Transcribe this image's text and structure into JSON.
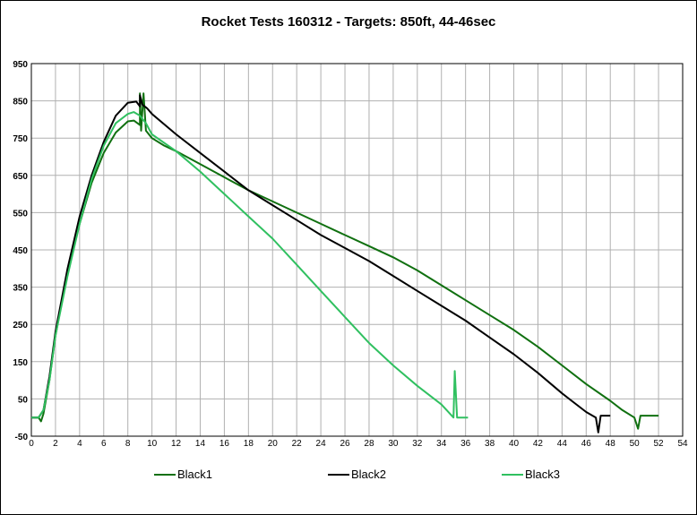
{
  "chart_data": {
    "type": "line",
    "title": "Rocket Tests 160312 - Targets: 850ft, 44-46sec",
    "xlabel": "",
    "ylabel": "",
    "xlim": [
      0,
      54
    ],
    "ylim": [
      -50,
      950
    ],
    "x_ticks": [
      0,
      2,
      4,
      6,
      8,
      10,
      12,
      14,
      16,
      18,
      20,
      22,
      24,
      26,
      28,
      30,
      32,
      34,
      36,
      38,
      40,
      42,
      44,
      46,
      48,
      50,
      52,
      54
    ],
    "y_ticks": [
      -50,
      50,
      150,
      250,
      350,
      450,
      550,
      650,
      750,
      850,
      950
    ],
    "grid": true,
    "legend_position": "bottom",
    "series": [
      {
        "name": "Black1",
        "color": "#107010",
        "points": [
          [
            0,
            0
          ],
          [
            0.6,
            0
          ],
          [
            0.8,
            -10
          ],
          [
            1,
            10
          ],
          [
            1.5,
            100
          ],
          [
            2,
            220
          ],
          [
            3,
            390
          ],
          [
            4,
            520
          ],
          [
            5,
            630
          ],
          [
            6,
            710
          ],
          [
            7,
            765
          ],
          [
            8,
            795
          ],
          [
            8.5,
            797
          ],
          [
            9,
            785
          ],
          [
            9,
            870
          ],
          [
            9.1,
            770
          ],
          [
            9.3,
            870
          ],
          [
            9.5,
            770
          ],
          [
            10,
            750
          ],
          [
            11,
            730
          ],
          [
            12,
            715
          ],
          [
            14,
            680
          ],
          [
            16,
            645
          ],
          [
            18,
            610
          ],
          [
            20,
            580
          ],
          [
            22,
            550
          ],
          [
            24,
            520
          ],
          [
            26,
            490
          ],
          [
            28,
            460
          ],
          [
            30,
            430
          ],
          [
            32,
            395
          ],
          [
            34,
            355
          ],
          [
            36,
            315
          ],
          [
            38,
            275
          ],
          [
            40,
            235
          ],
          [
            42,
            190
          ],
          [
            44,
            140
          ],
          [
            46,
            90
          ],
          [
            48,
            45
          ],
          [
            49,
            20
          ],
          [
            50,
            0
          ],
          [
            50.3,
            -30
          ],
          [
            50.5,
            5
          ],
          [
            52,
            5
          ]
        ]
      },
      {
        "name": "Black2",
        "color": "#000000",
        "points": [
          [
            0,
            0
          ],
          [
            0.6,
            0
          ],
          [
            1,
            20
          ],
          [
            1.5,
            110
          ],
          [
            2,
            230
          ],
          [
            3,
            400
          ],
          [
            4,
            540
          ],
          [
            5,
            650
          ],
          [
            6,
            740
          ],
          [
            7,
            810
          ],
          [
            8,
            845
          ],
          [
            8.7,
            848
          ],
          [
            9,
            835
          ],
          [
            9,
            865
          ],
          [
            9.2,
            840
          ],
          [
            9.6,
            830
          ],
          [
            10,
            815
          ],
          [
            12,
            760
          ],
          [
            14,
            710
          ],
          [
            16,
            660
          ],
          [
            18,
            610
          ],
          [
            20,
            570
          ],
          [
            22,
            530
          ],
          [
            24,
            490
          ],
          [
            26,
            455
          ],
          [
            28,
            420
          ],
          [
            30,
            380
          ],
          [
            32,
            340
          ],
          [
            34,
            300
          ],
          [
            36,
            260
          ],
          [
            38,
            215
          ],
          [
            40,
            170
          ],
          [
            42,
            120
          ],
          [
            44,
            65
          ],
          [
            46,
            15
          ],
          [
            46.8,
            0
          ],
          [
            47,
            -40
          ],
          [
            47.2,
            5
          ],
          [
            48,
            5
          ]
        ]
      },
      {
        "name": "Black3",
        "color": "#30c060",
        "points": [
          [
            0,
            0
          ],
          [
            0.6,
            0
          ],
          [
            1,
            20
          ],
          [
            1.5,
            100
          ],
          [
            2,
            220
          ],
          [
            3,
            380
          ],
          [
            4,
            520
          ],
          [
            5,
            640
          ],
          [
            6,
            730
          ],
          [
            7,
            790
          ],
          [
            8,
            815
          ],
          [
            8.5,
            820
          ],
          [
            9,
            810
          ],
          [
            9.5,
            790
          ],
          [
            10,
            760
          ],
          [
            12,
            715
          ],
          [
            14,
            660
          ],
          [
            16,
            600
          ],
          [
            18,
            540
          ],
          [
            20,
            480
          ],
          [
            22,
            410
          ],
          [
            24,
            340
          ],
          [
            26,
            270
          ],
          [
            28,
            200
          ],
          [
            30,
            140
          ],
          [
            32,
            85
          ],
          [
            34,
            35
          ],
          [
            35,
            0
          ],
          [
            35.1,
            125
          ],
          [
            35.3,
            0
          ],
          [
            36.2,
            0
          ]
        ]
      }
    ]
  }
}
